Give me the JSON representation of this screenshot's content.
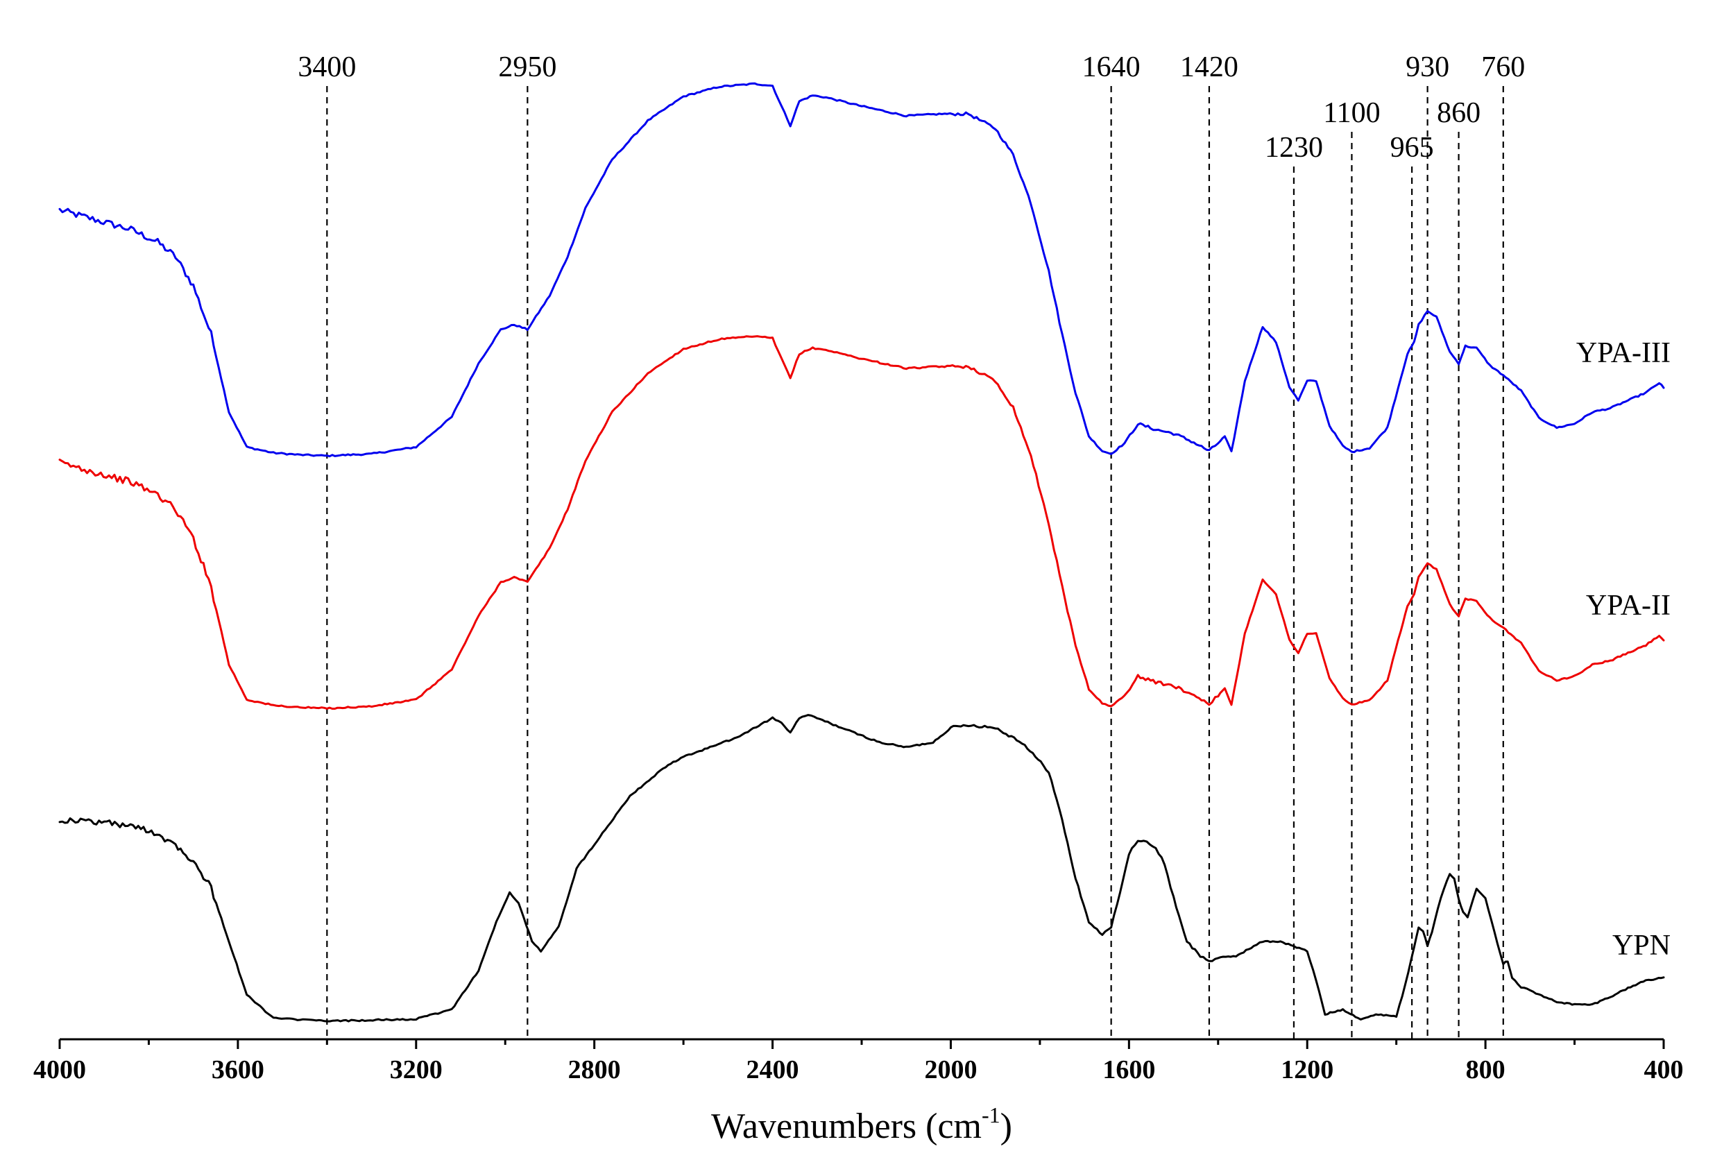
{
  "chart_data": {
    "type": "line",
    "title": "",
    "xlabel": "Wavenumbers (cm",
    "xlabel_sup": "-1",
    "xlabel_close": ")",
    "ylabel": "",
    "xlim": [
      4000,
      400
    ],
    "x_reversed": true,
    "ylim": [
      0,
      1
    ],
    "y_axis_shown": false,
    "grid": false,
    "legend": "inline-right",
    "x_ticks": [
      {
        "value": 4000,
        "label": "4000"
      },
      {
        "value": 3600,
        "label": "3600"
      },
      {
        "value": 3200,
        "label": "3200"
      },
      {
        "value": 2800,
        "label": "2800"
      },
      {
        "value": 2400,
        "label": "2400"
      },
      {
        "value": 2000,
        "label": "2000"
      },
      {
        "value": 1600,
        "label": "1600"
      },
      {
        "value": 1200,
        "label": "1200"
      },
      {
        "value": 800,
        "label": "800"
      },
      {
        "value": 400,
        "label": "400"
      }
    ],
    "peak_markers": [
      {
        "value": 3400,
        "label": "3400",
        "label_level": 0
      },
      {
        "value": 2950,
        "label": "2950",
        "label_level": 0
      },
      {
        "value": 1640,
        "label": "1640",
        "label_level": 0
      },
      {
        "value": 1420,
        "label": "1420",
        "label_level": 0
      },
      {
        "value": 1230,
        "label": "1230",
        "label_level": 2
      },
      {
        "value": 1100,
        "label": "1100",
        "label_level": 1
      },
      {
        "value": 965,
        "label": "965",
        "label_level": 2
      },
      {
        "value": 930,
        "label": "930",
        "label_level": 0
      },
      {
        "value": 860,
        "label": "860",
        "label_level": 1
      },
      {
        "value": 760,
        "label": "760",
        "label_level": 0
      }
    ],
    "series": [
      {
        "name": "YPA-III",
        "color": "#0000ee",
        "x": [
          4000,
          3920,
          3840,
          3780,
          3740,
          3700,
          3660,
          3620,
          3580,
          3520,
          3460,
          3400,
          3300,
          3200,
          3120,
          3060,
          3010,
          2980,
          2950,
          2900,
          2860,
          2820,
          2760,
          2680,
          2600,
          2520,
          2440,
          2400,
          2380,
          2360,
          2340,
          2310,
          2280,
          2200,
          2100,
          2020,
          1960,
          1900,
          1860,
          1820,
          1780,
          1750,
          1720,
          1690,
          1660,
          1640,
          1610,
          1580,
          1540,
          1500,
          1460,
          1420,
          1400,
          1385,
          1370,
          1340,
          1300,
          1270,
          1240,
          1220,
          1200,
          1180,
          1150,
          1120,
          1100,
          1060,
          1020,
          990,
          975,
          960,
          950,
          930,
          910,
          880,
          860,
          845,
          820,
          790,
          760,
          720,
          680,
          640,
          600,
          560,
          520,
          480,
          440,
          410,
          400
        ],
        "y": [
          0.848,
          0.838,
          0.828,
          0.815,
          0.8,
          0.77,
          0.72,
          0.64,
          0.604,
          0.598,
          0.596,
          0.595,
          0.597,
          0.604,
          0.635,
          0.69,
          0.725,
          0.73,
          0.725,
          0.76,
          0.8,
          0.85,
          0.9,
          0.94,
          0.965,
          0.975,
          0.978,
          0.976,
          0.955,
          0.935,
          0.96,
          0.966,
          0.964,
          0.955,
          0.945,
          0.947,
          0.947,
          0.932,
          0.905,
          0.855,
          0.785,
          0.72,
          0.66,
          0.615,
          0.6,
          0.597,
          0.608,
          0.628,
          0.622,
          0.618,
          0.61,
          0.6,
          0.608,
          0.615,
          0.599,
          0.672,
          0.728,
          0.712,
          0.666,
          0.652,
          0.672,
          0.672,
          0.626,
          0.605,
          0.599,
          0.603,
          0.624,
          0.675,
          0.7,
          0.712,
          0.73,
          0.744,
          0.738,
          0.702,
          0.69,
          0.708,
          0.706,
          0.688,
          0.678,
          0.662,
          0.634,
          0.624,
          0.628,
          0.64,
          0.644,
          0.652,
          0.66,
          0.67,
          0.665
        ]
      },
      {
        "name": "YPA-II",
        "color": "#ee0000",
        "x": [
          4000,
          3920,
          3840,
          3780,
          3740,
          3700,
          3660,
          3620,
          3580,
          3520,
          3460,
          3400,
          3300,
          3200,
          3120,
          3060,
          3010,
          2980,
          2950,
          2900,
          2860,
          2820,
          2760,
          2680,
          2600,
          2520,
          2440,
          2400,
          2380,
          2360,
          2340,
          2310,
          2280,
          2200,
          2100,
          2020,
          1960,
          1900,
          1860,
          1820,
          1780,
          1750,
          1720,
          1690,
          1660,
          1640,
          1610,
          1580,
          1540,
          1500,
          1460,
          1420,
          1400,
          1385,
          1370,
          1340,
          1300,
          1270,
          1240,
          1220,
          1200,
          1180,
          1150,
          1120,
          1100,
          1060,
          1020,
          990,
          975,
          960,
          950,
          930,
          910,
          880,
          860,
          845,
          820,
          790,
          760,
          720,
          680,
          640,
          600,
          560,
          520,
          480,
          440,
          410,
          400
        ],
        "y": [
          0.588,
          0.578,
          0.568,
          0.555,
          0.54,
          0.51,
          0.46,
          0.38,
          0.344,
          0.338,
          0.336,
          0.335,
          0.337,
          0.344,
          0.375,
          0.43,
          0.465,
          0.47,
          0.465,
          0.5,
          0.54,
          0.59,
          0.64,
          0.68,
          0.705,
          0.715,
          0.718,
          0.716,
          0.695,
          0.675,
          0.7,
          0.706,
          0.704,
          0.695,
          0.685,
          0.687,
          0.687,
          0.672,
          0.645,
          0.595,
          0.525,
          0.46,
          0.4,
          0.355,
          0.34,
          0.337,
          0.348,
          0.368,
          0.362,
          0.358,
          0.35,
          0.34,
          0.348,
          0.355,
          0.339,
          0.412,
          0.468,
          0.452,
          0.406,
          0.392,
          0.412,
          0.412,
          0.366,
          0.345,
          0.339,
          0.343,
          0.364,
          0.415,
          0.44,
          0.452,
          0.47,
          0.484,
          0.478,
          0.442,
          0.43,
          0.448,
          0.446,
          0.428,
          0.418,
          0.402,
          0.374,
          0.364,
          0.368,
          0.38,
          0.384,
          0.392,
          0.4,
          0.41,
          0.405
        ]
      },
      {
        "name": "YPN",
        "color": "#000000",
        "x": [
          4000,
          3900,
          3800,
          3740,
          3700,
          3660,
          3620,
          3580,
          3520,
          3400,
          3200,
          3120,
          3060,
          3020,
          2990,
          2970,
          2940,
          2920,
          2880,
          2840,
          2800,
          2720,
          2640,
          2600,
          2480,
          2400,
          2380,
          2360,
          2340,
          2320,
          2300,
          2240,
          2160,
          2100,
          2040,
          2000,
          1960,
          1900,
          1840,
          1780,
          1750,
          1720,
          1690,
          1660,
          1640,
          1620,
          1600,
          1580,
          1560,
          1540,
          1520,
          1500,
          1470,
          1440,
          1420,
          1400,
          1360,
          1320,
          1300,
          1260,
          1230,
          1200,
          1180,
          1160,
          1120,
          1080,
          1040,
          1000,
          980,
          960,
          950,
          940,
          930,
          920,
          900,
          880,
          870,
          860,
          850,
          840,
          820,
          800,
          780,
          760,
          750,
          740,
          720,
          700,
          680,
          640,
          600,
          560,
          520,
          480,
          440,
          400
        ],
        "y": [
          0.22,
          0.218,
          0.21,
          0.195,
          0.178,
          0.15,
          0.095,
          0.04,
          0.016,
          0.013,
          0.015,
          0.025,
          0.065,
          0.115,
          0.145,
          0.135,
          0.095,
          0.085,
          0.11,
          0.17,
          0.195,
          0.245,
          0.275,
          0.285,
          0.305,
          0.325,
          0.32,
          0.31,
          0.325,
          0.328,
          0.325,
          0.314,
          0.3,
          0.295,
          0.3,
          0.315,
          0.318,
          0.315,
          0.3,
          0.27,
          0.22,
          0.16,
          0.115,
          0.102,
          0.11,
          0.145,
          0.185,
          0.2,
          0.198,
          0.19,
          0.175,
          0.14,
          0.095,
          0.08,
          0.075,
          0.078,
          0.08,
          0.09,
          0.095,
          0.095,
          0.09,
          0.085,
          0.055,
          0.02,
          0.025,
          0.015,
          0.02,
          0.018,
          0.05,
          0.09,
          0.11,
          0.106,
          0.09,
          0.105,
          0.14,
          0.165,
          0.16,
          0.138,
          0.125,
          0.12,
          0.15,
          0.14,
          0.105,
          0.072,
          0.075,
          0.058,
          0.048,
          0.045,
          0.04,
          0.033,
          0.03,
          0.03,
          0.038,
          0.047,
          0.055,
          0.058
        ]
      }
    ]
  }
}
